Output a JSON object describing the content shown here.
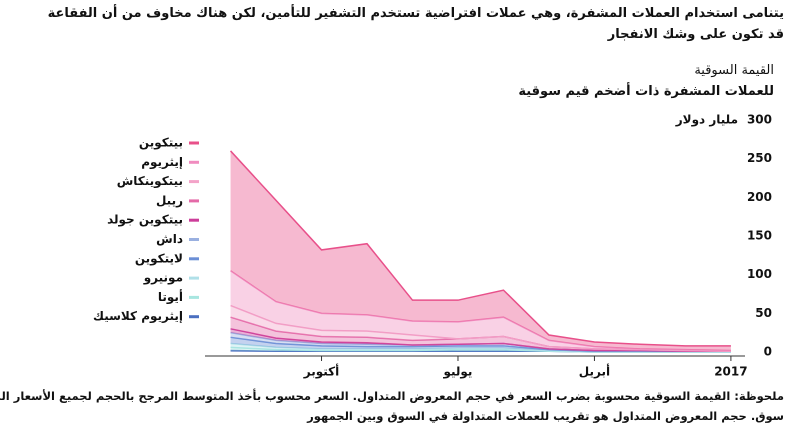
{
  "header": {
    "lines": [
      "يتنامى استخدام العملات المشفرة، وهي عملات افتراضية تستخدم التشفير للتأمين، لكن هناك مخاوف من أن الفقاعة",
      "قد تكون على وشك الانفجار"
    ]
  },
  "chart_data": {
    "type": "stacked-area",
    "title": "القيمة السوقية",
    "subtitle": "للعملات المشفرة ذات أضخم قيم سوقية",
    "y_unit": "مليار دولار",
    "x": [
      11,
      10,
      9,
      8,
      7,
      6,
      5,
      4,
      3,
      2,
      1,
      0
    ],
    "xlim": [
      11.1,
      -0.2
    ],
    "xticks": [
      {
        "value": 9,
        "label": "أكتوبر"
      },
      {
        "value": 6,
        "label": "يوليو"
      },
      {
        "value": 3,
        "label": "أبريل"
      },
      {
        "value": 0,
        "label": "2017"
      }
    ],
    "ylim": [
      0,
      300
    ],
    "yticks": [
      0,
      50,
      100,
      150,
      200,
      250,
      300
    ],
    "grid": false,
    "series": [
      {
        "name": "بيتكوين",
        "color": "#e8508a",
        "values": [
          155,
          131,
          82,
          92,
          27,
          28,
          35,
          7,
          6,
          6,
          5,
          6
        ]
      },
      {
        "name": "إيثريوم",
        "color": "#f08cbf",
        "values": [
          45,
          28,
          22,
          21,
          18,
          22,
          25,
          8,
          3,
          1,
          1,
          1
        ]
      },
      {
        "name": "بيتكوينكاش",
        "color": "#f3a3c8",
        "values": [
          15,
          10,
          8,
          8,
          7,
          0,
          0,
          0,
          0,
          0,
          0,
          0
        ]
      },
      {
        "name": "ريبل",
        "color": "#e46aa8",
        "values": [
          15,
          9,
          7,
          7,
          6,
          7,
          9,
          3,
          2,
          1,
          1,
          0
        ]
      },
      {
        "name": "بيتكوين جولد",
        "color": "#cc3d9a",
        "values": [
          5,
          3,
          2,
          2,
          0,
          0,
          0,
          0,
          0,
          0,
          0,
          0
        ]
      },
      {
        "name": "داش",
        "color": "#9ab0e0",
        "values": [
          6,
          4,
          3,
          3,
          2,
          2,
          3,
          1,
          1,
          1,
          0,
          0
        ]
      },
      {
        "name": "لايتكوين",
        "color": "#6b8fd6",
        "values": [
          8,
          5,
          4,
          3,
          3,
          3,
          3,
          1,
          1,
          1,
          1,
          1
        ]
      },
      {
        "name": "مونيرو",
        "color": "#b0e0e8",
        "values": [
          5,
          3,
          2,
          2,
          2,
          2,
          2,
          1,
          0,
          0,
          0,
          0
        ]
      },
      {
        "name": "أيوتا",
        "color": "#a8e6e0",
        "values": [
          4,
          2,
          1,
          1,
          1,
          2,
          2,
          0,
          0,
          0,
          0,
          0
        ]
      },
      {
        "name": "إيثريوم كلاسيك",
        "color": "#4b6fc0",
        "values": [
          2,
          1,
          1,
          1,
          1,
          1,
          1,
          1,
          0,
          0,
          0,
          0
        ]
      }
    ]
  },
  "note": {
    "lines": [
      "ملحوظة: القيمة السوقية محسوبة بضرب السعر في حجم المعروض المتداول. السعر محسوب بأخذ المتوسط المرجح بالحجم لجميع الأسعار المسجلة في كل",
      "سوق. حجم المعروض المتداول هو تقريب للعملات المتداولة في السوق وبين الجمهور"
    ]
  }
}
